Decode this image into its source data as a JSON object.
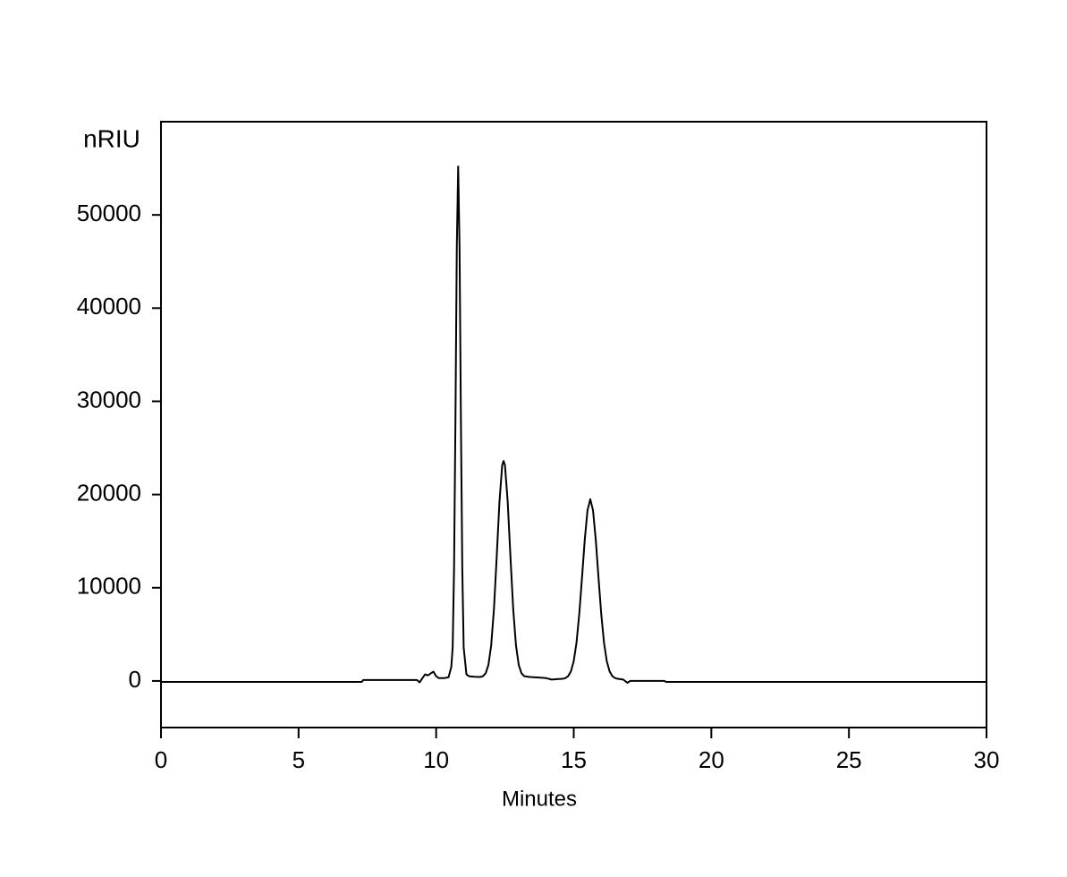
{
  "chart_data": {
    "type": "line",
    "y_label": "nRIU",
    "x_label": "Minutes",
    "xlim": [
      0,
      30
    ],
    "xticks": [
      0,
      5,
      10,
      15,
      20,
      25,
      30
    ],
    "ylim": [
      -5000,
      60000
    ],
    "yticks": [
      0,
      10000,
      20000,
      30000,
      40000,
      50000
    ],
    "grid": false,
    "series": [
      {
        "color": "#000000",
        "x": [
          0,
          7.3,
          7.35,
          9.3,
          9.4,
          9.5,
          9.6,
          9.7,
          9.8,
          9.9,
          10.0,
          10.1,
          10.3,
          10.45,
          10.55,
          10.6,
          10.65,
          10.7,
          10.75,
          10.8,
          10.85,
          10.9,
          10.95,
          11.0,
          11.1,
          11.2,
          11.4,
          11.6,
          11.7,
          11.8,
          11.9,
          12.0,
          12.1,
          12.2,
          12.3,
          12.4,
          12.45,
          12.5,
          12.6,
          12.7,
          12.8,
          12.9,
          13.0,
          13.1,
          13.2,
          13.4,
          13.8,
          14.0,
          14.2,
          14.4,
          14.6,
          14.7,
          14.8,
          14.9,
          15.0,
          15.1,
          15.2,
          15.3,
          15.4,
          15.5,
          15.6,
          15.7,
          15.8,
          15.9,
          16.0,
          16.1,
          16.2,
          16.3,
          16.4,
          16.5,
          16.6,
          16.8,
          16.95,
          17.05,
          18.3,
          18.35,
          30
        ],
        "values": [
          -100,
          -100,
          100,
          100,
          -150,
          300,
          700,
          600,
          800,
          1000,
          500,
          300,
          300,
          400,
          1500,
          3600,
          12000,
          27700,
          46500,
          55200,
          46500,
          27700,
          12000,
          3600,
          700,
          500,
          450,
          420,
          510,
          830,
          1730,
          3830,
          7720,
          13300,
          19200,
          23150,
          23600,
          23150,
          19200,
          13300,
          7720,
          3830,
          1730,
          830,
          510,
          420,
          350,
          300,
          150,
          200,
          230,
          310,
          525,
          1045,
          2130,
          4110,
          7150,
          11070,
          15160,
          18300,
          19500,
          18300,
          15160,
          11070,
          7150,
          4110,
          2130,
          1045,
          525,
          310,
          230,
          150,
          -200,
          0,
          0,
          -100,
          -100
        ]
      }
    ]
  }
}
